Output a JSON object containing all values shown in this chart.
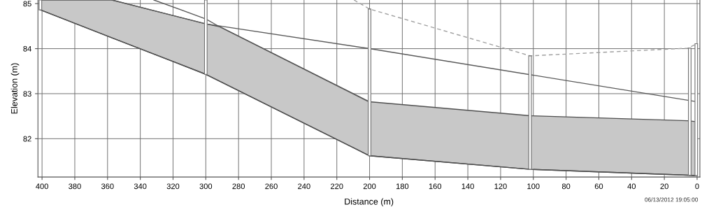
{
  "chart_data": {
    "type": "line",
    "xlabel": "Distance (m)",
    "ylabel": "Elevation (m)",
    "xlim": [
      402.5,
      -1.7
    ],
    "ylim": [
      81.15,
      85.08
    ],
    "xticks": [
      400,
      380,
      360,
      340,
      320,
      300,
      280,
      260,
      240,
      220,
      200,
      180,
      160,
      140,
      120,
      100,
      80,
      60,
      40,
      20,
      0
    ],
    "yticks": [
      82,
      83,
      84,
      85
    ],
    "grid": true,
    "marker": "none",
    "annotations": [
      "06/13/2012 19:05:00"
    ],
    "series": [
      {
        "color": "#505050",
        "line_style": "solid",
        "x": [
          401,
          357.3,
          300,
          291.8,
          200,
          101.9,
          5.8,
          0.8
        ],
        "values": [
          84.86,
          84.24,
          83.43,
          83.28,
          81.62,
          81.32,
          81.19,
          81.18
        ],
        "lower": [
          84.86,
          84.24,
          83.43,
          83.28,
          81.62,
          81.32,
          81.19,
          81.18
        ],
        "upper": [
          85.08,
          85.08,
          84.55,
          84.49,
          82.82,
          82.51,
          82.4,
          82.38
        ]
      },
      {
        "color": "#5a5a5a",
        "line_style": "solid",
        "x": [
          357.3,
          300,
          200,
          0
        ],
        "values": [
          85.08,
          84.55,
          84.0,
          82.82
        ]
      },
      {
        "color": "#5a5a5a",
        "line_style": "solid",
        "x": [
          331.7,
          300,
          291.8,
          200
        ],
        "values": [
          85.08,
          84.66,
          84.49,
          82.81
        ]
      },
      {
        "color": "#a0a0a0",
        "line_style": "dashed",
        "x": [
          209.5,
          200,
          101.9,
          5.8,
          0
        ],
        "values": [
          85.08,
          84.88,
          83.84,
          84.01,
          84.11
        ]
      },
      {
        "type": "bar",
        "color": "#707070",
        "x": [
          401,
          300,
          200,
          102,
          4.5,
          0.5
        ],
        "base": [
          84.86,
          83.43,
          81.62,
          81.32,
          81.19,
          81.18
        ],
        "values": [
          0.22,
          1.65,
          3.26,
          2.52,
          2.82,
          2.93
        ]
      }
    ]
  }
}
